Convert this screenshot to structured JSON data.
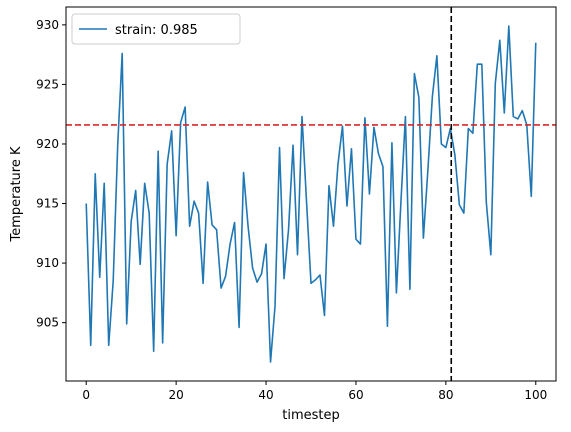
{
  "chart_data": {
    "type": "line",
    "title": "",
    "xlabel": "timestep",
    "ylabel": "Temperature K",
    "xlim": [
      -4.5,
      104.5
    ],
    "ylim": [
      900.1,
      931.5
    ],
    "xticks": [
      0,
      20,
      40,
      60,
      80,
      100
    ],
    "yticks": [
      905,
      910,
      915,
      920,
      925,
      930
    ],
    "grid": false,
    "legend": {
      "location": "upper-left"
    },
    "series": [
      {
        "name": "strain: 0.985",
        "color": "#1f77b4",
        "x": [
          0,
          1,
          2,
          3,
          4,
          5,
          6,
          7,
          8,
          9,
          10,
          11,
          12,
          13,
          14,
          15,
          16,
          17,
          18,
          19,
          20,
          21,
          22,
          23,
          24,
          25,
          26,
          27,
          28,
          29,
          30,
          31,
          32,
          33,
          34,
          35,
          36,
          37,
          38,
          39,
          40,
          41,
          42,
          43,
          44,
          45,
          46,
          47,
          48,
          49,
          50,
          51,
          52,
          53,
          54,
          55,
          56,
          57,
          58,
          59,
          60,
          61,
          62,
          63,
          64,
          65,
          66,
          67,
          68,
          69,
          70,
          71,
          72,
          73,
          74,
          75,
          76,
          77,
          78,
          79,
          80,
          81,
          82,
          83,
          84,
          85,
          86,
          87,
          88,
          89,
          90,
          91,
          92,
          93,
          94,
          95,
          96,
          97,
          98,
          99,
          100
        ],
        "y": [
          915.0,
          903.1,
          917.5,
          908.8,
          916.7,
          903.1,
          908.5,
          919.9,
          927.6,
          904.9,
          913.5,
          916.1,
          909.9,
          916.7,
          914.2,
          902.6,
          919.4,
          903.3,
          918.3,
          921.1,
          912.3,
          921.8,
          923.1,
          913.1,
          915.2,
          914.2,
          908.3,
          916.8,
          913.2,
          912.8,
          907.9,
          908.9,
          911.6,
          913.4,
          904.6,
          917.6,
          913.1,
          909.6,
          908.4,
          909.1,
          911.6,
          901.7,
          906.4,
          919.7,
          908.7,
          912.8,
          919.9,
          910.7,
          922.3,
          915.2,
          908.3,
          908.6,
          909.0,
          905.6,
          916.5,
          913.1,
          918.3,
          921.5,
          914.8,
          919.6,
          912.0,
          911.6,
          922.2,
          915.8,
          921.4,
          919.2,
          918.1,
          904.7,
          920.1,
          907.5,
          915.1,
          922.3,
          907.8,
          925.9,
          923.9,
          912.1,
          917.8,
          924.0,
          927.4,
          920.0,
          919.7,
          921.3,
          919.1,
          914.9,
          914.2,
          921.3,
          920.9,
          926.7,
          926.7,
          915.1,
          910.7,
          925.1,
          928.7,
          922.6,
          929.9,
          922.3,
          922.1,
          922.8,
          921.6,
          915.6,
          928.5
        ]
      }
    ],
    "reference_lines": [
      {
        "orientation": "horizontal",
        "value": 921.6,
        "color": "#d62728",
        "style": "dashed"
      },
      {
        "orientation": "vertical",
        "value": 81.2,
        "color": "#000000",
        "style": "dashed"
      }
    ]
  }
}
